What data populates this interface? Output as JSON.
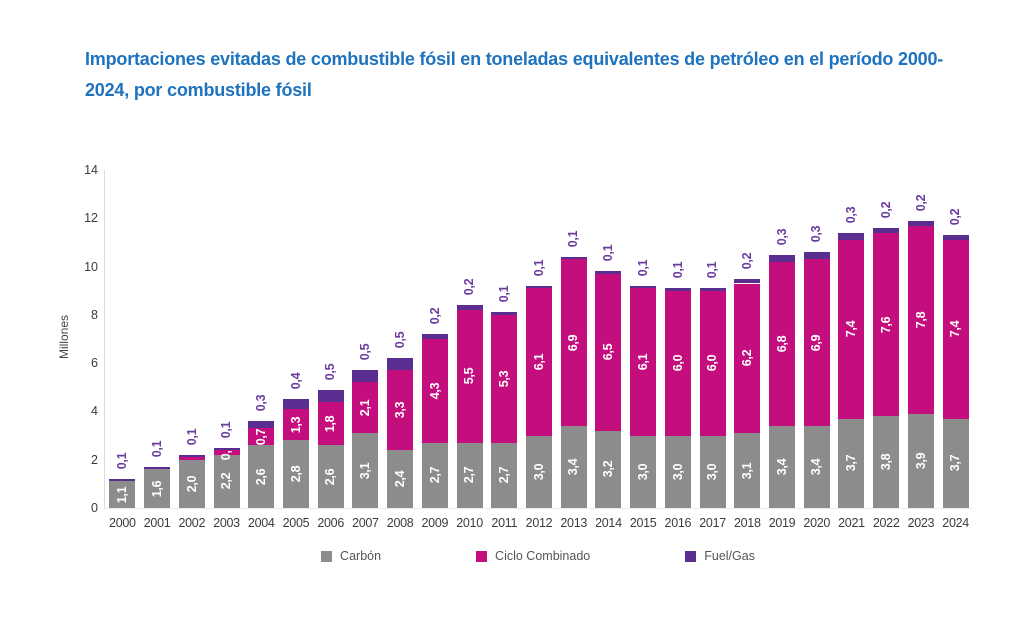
{
  "title": "Importaciones evitadas de combustible fósil en toneladas equivalentes de petróleo en el período 2000-2024, por combustible fósil",
  "colors": {
    "title_blue": "#1E73BE",
    "carbon_gray": "#8C8C8C",
    "ciclo_pink": "#C40E7D",
    "fuelgas_purple": "#5A2E91",
    "fuelgas_label": "#6B3CA0",
    "axis_text": "#3c3c3c"
  },
  "chart_data": {
    "type": "bar",
    "stacked": true,
    "title": "Importaciones evitadas de combustible fósil en toneladas equivalentes de petróleo en el período 2000-2024, por combustible fósil",
    "xlabel": "",
    "ylabel": "Millones",
    "ylim": [
      0,
      14
    ],
    "yticks": [
      0,
      2,
      4,
      6,
      8,
      10,
      12,
      14
    ],
    "grid": false,
    "legend_position": "bottom",
    "categories": [
      "2000",
      "2001",
      "2002",
      "2003",
      "2004",
      "2005",
      "2006",
      "2007",
      "2008",
      "2009",
      "2010",
      "2011",
      "2012",
      "2013",
      "2014",
      "2015",
      "2016",
      "2017",
      "2018",
      "2019",
      "2020",
      "2021",
      "2022",
      "2023",
      "2024"
    ],
    "series": [
      {
        "name": "Carbón",
        "color": "#8C8C8C",
        "label_style": "inside-white",
        "values": [
          1.1,
          1.6,
          2.0,
          2.2,
          2.6,
          2.8,
          2.6,
          3.1,
          2.4,
          2.7,
          2.7,
          2.7,
          3.0,
          3.4,
          3.2,
          3.0,
          3.0,
          3.0,
          3.1,
          3.4,
          3.4,
          3.7,
          3.8,
          3.9,
          3.7
        ],
        "labels": [
          "1,1",
          "1,6",
          "2,0",
          "2,2",
          "2,6",
          "2,8",
          "2,6",
          "3,1",
          "2,4",
          "2,7",
          "2,7",
          "2,7",
          "3,0",
          "3,4",
          "3,2",
          "3,0",
          "3,0",
          "3,0",
          "3,1",
          "3,4",
          "3,4",
          "3,7",
          "3,8",
          "3,9",
          "3,7"
        ]
      },
      {
        "name": "Ciclo Combinado",
        "color": "#C40E7D",
        "label_style": "inside-white",
        "values": [
          0,
          0,
          0.1,
          0.2,
          0.7,
          1.3,
          1.8,
          2.1,
          3.3,
          4.3,
          5.5,
          5.3,
          6.1,
          6.9,
          6.5,
          6.1,
          6.0,
          6.0,
          6.2,
          6.8,
          6.9,
          7.4,
          7.6,
          7.8,
          7.4
        ],
        "labels": [
          "",
          "",
          "",
          "0,2",
          "0,7",
          "1,3",
          "1,8",
          "2,1",
          "3,3",
          "4,3",
          "5,5",
          "5,3",
          "6,1",
          "6,9",
          "6,5",
          "6,1",
          "6,0",
          "6,0",
          "6,2",
          "6,8",
          "6,9",
          "7,4",
          "7,6",
          "7,8",
          "7,4"
        ]
      },
      {
        "name": "Fuel/Gas",
        "color": "#5A2E91",
        "label_style": "above-purple",
        "label_color": "#6B3CA0",
        "values": [
          0.1,
          0.1,
          0.1,
          0.1,
          0.3,
          0.4,
          0.5,
          0.5,
          0.5,
          0.2,
          0.2,
          0.1,
          0.1,
          0.1,
          0.1,
          0.1,
          0.1,
          0.1,
          0.2,
          0.3,
          0.3,
          0.3,
          0.2,
          0.2,
          0.2
        ],
        "labels": [
          "0,1",
          "0,1",
          "0,1",
          "0,1",
          "0,3",
          "0,4",
          "0,5",
          "0,5",
          "0,5",
          "0,2",
          "0,2",
          "0,1",
          "0,1",
          "0,1",
          "0,1",
          "0,1",
          "0,1",
          "0,1",
          "0,2",
          "0,3",
          "0,3",
          "0,3",
          "0,2",
          "0,2",
          "0,2"
        ]
      }
    ]
  }
}
